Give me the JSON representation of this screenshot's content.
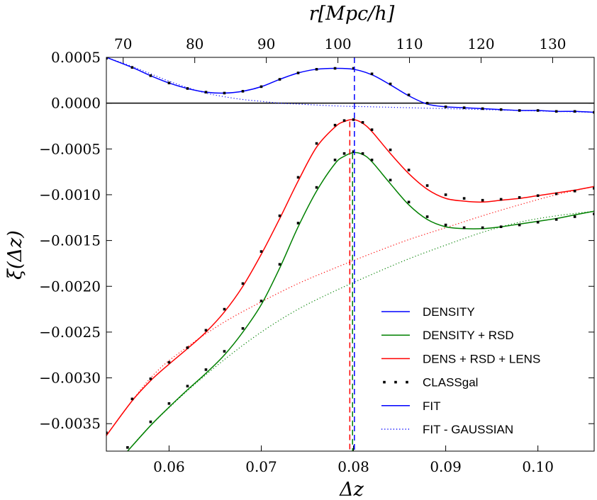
{
  "chart_data": {
    "type": "line",
    "title": "",
    "xlabel": "Δz",
    "ylabel": "ξ(Δz)",
    "top_xlabel": "r[Mpc/h]",
    "xlim": [
      0.0532,
      0.1061
    ],
    "ylim": [
      -0.0038,
      0.0005
    ],
    "top_xlim": [
      67.65,
      135.8
    ],
    "x_ticks": [
      0.06,
      0.07,
      0.08,
      0.09,
      0.1
    ],
    "x_tick_labels": [
      "0.06",
      "0.07",
      "0.08",
      "0.09",
      "0.10"
    ],
    "top_x_ticks": [
      70,
      80,
      90,
      100,
      110,
      120,
      130
    ],
    "top_x_tick_labels": [
      "70",
      "80",
      "90",
      "100",
      "110",
      "120",
      "130"
    ],
    "y_ticks": [
      0.0005,
      0.0,
      -0.0005,
      -0.001,
      -0.0015,
      -0.002,
      -0.0025,
      -0.003,
      -0.0035
    ],
    "y_tick_labels": [
      "0.0005",
      "0.0000",
      "−0.0005",
      "−0.0010",
      "−0.0015",
      "−0.0020",
      "−0.0025",
      "−0.0030",
      "−0.0035"
    ],
    "grid": false,
    "legend_position": "lower-right",
    "hline": {
      "y": 0.0,
      "color": "#000000"
    },
    "vlines": [
      {
        "x": 0.0796,
        "top_y": -0.0002,
        "color": "#ff0000"
      },
      {
        "x": 0.0799,
        "top_y": -0.00055,
        "color": "#008000"
      },
      {
        "x": 0.0801,
        "top_y": 0.0005,
        "color": "#0000ff"
      }
    ],
    "series": [
      {
        "name": "DENS + RSD + LENS fit",
        "color": "#ff0000",
        "style": "solid",
        "x": [
          0.0532,
          0.056,
          0.058,
          0.06,
          0.062,
          0.064,
          0.066,
          0.068,
          0.07,
          0.072,
          0.074,
          0.076,
          0.078,
          0.079,
          0.08,
          0.081,
          0.082,
          0.084,
          0.086,
          0.088,
          0.09,
          0.092,
          0.094,
          0.096,
          0.098,
          0.1,
          0.102,
          0.104,
          0.1061
        ],
        "y": [
          -0.00363,
          -0.00325,
          -0.00303,
          -0.00285,
          -0.00268,
          -0.0025,
          -0.00228,
          -0.002,
          -0.00165,
          -0.00126,
          -0.00085,
          -0.00048,
          -0.00026,
          -0.0002,
          -0.00018,
          -0.00022,
          -0.00031,
          -0.00055,
          -0.00077,
          -0.00094,
          -0.00104,
          -0.00107,
          -0.00108,
          -0.00106,
          -0.00104,
          -0.00101,
          -0.00098,
          -0.00095,
          -0.00091
        ]
      },
      {
        "name": "DENS + RSD + LENS gaussian-subtracted",
        "color": "#ff0000",
        "style": "dotted",
        "x": [
          0.0532,
          0.058,
          0.062,
          0.066,
          0.07,
          0.074,
          0.078,
          0.082,
          0.086,
          0.09,
          0.094,
          0.098,
          0.102,
          0.1061
        ],
        "y": [
          -0.00363,
          -0.003,
          -0.00266,
          -0.00239,
          -0.00217,
          -0.00197,
          -0.0018,
          -0.00164,
          -0.00149,
          -0.00136,
          -0.00123,
          -0.00111,
          -0.001,
          -0.00091
        ]
      },
      {
        "name": "DENSITY + RSD fit",
        "color": "#008000",
        "style": "solid",
        "x": [
          0.0555,
          0.058,
          0.06,
          0.062,
          0.064,
          0.066,
          0.068,
          0.07,
          0.072,
          0.074,
          0.076,
          0.078,
          0.079,
          0.08,
          0.081,
          0.082,
          0.084,
          0.086,
          0.088,
          0.09,
          0.092,
          0.094,
          0.096,
          0.098,
          0.1,
          0.102,
          0.104,
          0.1061
        ],
        "y": [
          -0.0038,
          -0.00352,
          -0.00332,
          -0.00313,
          -0.00295,
          -0.00275,
          -0.0025,
          -0.0022,
          -0.0018,
          -0.00135,
          -0.00096,
          -0.00066,
          -0.00058,
          -0.00054,
          -0.00056,
          -0.00064,
          -0.00088,
          -0.00111,
          -0.00127,
          -0.00135,
          -0.00137,
          -0.00137,
          -0.00135,
          -0.00132,
          -0.00129,
          -0.00126,
          -0.00122,
          -0.00118
        ]
      },
      {
        "name": "DENSITY + RSD gaussian-subtracted",
        "color": "#008000",
        "style": "dotted",
        "x": [
          0.0555,
          0.058,
          0.062,
          0.066,
          0.07,
          0.074,
          0.078,
          0.082,
          0.086,
          0.09,
          0.094,
          0.098,
          0.102,
          0.1061
        ],
        "y": [
          -0.0038,
          -0.00352,
          -0.00314,
          -0.0028,
          -0.0025,
          -0.00225,
          -0.00205,
          -0.00187,
          -0.0017,
          -0.00155,
          -0.00141,
          -0.0013,
          -0.00123,
          -0.00118
        ]
      },
      {
        "name": "DENSITY fit",
        "color": "#0000ff",
        "style": "solid",
        "x": [
          0.0532,
          0.056,
          0.058,
          0.06,
          0.062,
          0.064,
          0.066,
          0.068,
          0.07,
          0.072,
          0.074,
          0.076,
          0.078,
          0.08,
          0.082,
          0.084,
          0.086,
          0.088,
          0.09,
          0.092,
          0.094,
          0.096,
          0.098,
          0.1,
          0.102,
          0.104,
          0.1061
        ],
        "y": [
          0.0005,
          0.00039,
          0.0003,
          0.00022,
          0.00016,
          0.00012,
          0.00011,
          0.00013,
          0.00018,
          0.00026,
          0.00033,
          0.00037,
          0.00038,
          0.00037,
          0.00031,
          0.0002,
          8e-05,
          -1e-05,
          -4e-05,
          -5e-05,
          -6e-05,
          -7e-05,
          -8e-05,
          -8e-05,
          -9e-05,
          -9e-05,
          -0.0001
        ]
      },
      {
        "name": "DENSITY gaussian-subtracted",
        "color": "#0000ff",
        "style": "dotted",
        "x": [
          0.0532,
          0.056,
          0.058,
          0.06,
          0.062,
          0.064,
          0.066,
          0.068,
          0.07,
          0.072,
          0.074,
          0.078,
          0.082,
          0.086,
          0.09,
          0.094,
          0.098,
          0.102,
          0.1061
        ],
        "y": [
          0.0005,
          0.0004,
          0.00032,
          0.00024,
          0.00017,
          0.00011,
          7e-05,
          4e-05,
          2e-05,
          0.0,
          -1e-05,
          -3e-05,
          -4e-05,
          -5e-05,
          -6e-05,
          -7e-05,
          -8e-05,
          -9e-05,
          -0.0001
        ]
      }
    ],
    "scatter": [
      {
        "name": "CLASSgal (DENS + RSD + LENS)",
        "color": "#000000",
        "x": [
          0.0532,
          0.056,
          0.058,
          0.06,
          0.062,
          0.064,
          0.066,
          0.068,
          0.07,
          0.072,
          0.074,
          0.076,
          0.078,
          0.079,
          0.08,
          0.081,
          0.082,
          0.084,
          0.086,
          0.088,
          0.09,
          0.092,
          0.094,
          0.096,
          0.098,
          0.1,
          0.102,
          0.104,
          0.1061
        ],
        "y": [
          -0.0036,
          -0.00323,
          -0.00301,
          -0.00283,
          -0.00267,
          -0.00248,
          -0.00225,
          -0.00197,
          -0.00162,
          -0.00123,
          -0.00081,
          -0.00044,
          -0.00024,
          -0.00019,
          -0.00018,
          -0.00021,
          -0.00029,
          -0.00051,
          -0.00073,
          -0.0009,
          -0.001,
          -0.00104,
          -0.00106,
          -0.00105,
          -0.00103,
          -0.00101,
          -0.00099,
          -0.00096,
          -0.00093
        ]
      },
      {
        "name": "CLASSgal (DENSITY + RSD)",
        "color": "#000000",
        "x": [
          0.0555,
          0.058,
          0.06,
          0.062,
          0.064,
          0.066,
          0.068,
          0.07,
          0.072,
          0.074,
          0.076,
          0.078,
          0.079,
          0.08,
          0.081,
          0.082,
          0.084,
          0.086,
          0.088,
          0.09,
          0.092,
          0.094,
          0.096,
          0.098,
          0.1,
          0.102,
          0.104,
          0.1061
        ],
        "y": [
          -0.00376,
          -0.00348,
          -0.00328,
          -0.00309,
          -0.00291,
          -0.00271,
          -0.00246,
          -0.00216,
          -0.00176,
          -0.00131,
          -0.00092,
          -0.00062,
          -0.00055,
          -0.00053,
          -0.00055,
          -0.00062,
          -0.00084,
          -0.00108,
          -0.00124,
          -0.00133,
          -0.00136,
          -0.00136,
          -0.00135,
          -0.00133,
          -0.0013,
          -0.00127,
          -0.00124,
          -0.00121
        ]
      },
      {
        "name": "CLASSgal (DENSITY)",
        "color": "#000000",
        "x": [
          0.0532,
          0.056,
          0.058,
          0.06,
          0.062,
          0.064,
          0.066,
          0.068,
          0.07,
          0.072,
          0.074,
          0.076,
          0.078,
          0.08,
          0.082,
          0.084,
          0.086,
          0.088,
          0.09,
          0.092,
          0.094,
          0.096,
          0.098,
          0.1,
          0.102,
          0.104,
          0.1061
        ],
        "y": [
          0.00049,
          0.00039,
          0.0003,
          0.00022,
          0.00016,
          0.00012,
          0.00011,
          0.00013,
          0.00018,
          0.00026,
          0.00033,
          0.00037,
          0.00038,
          0.00038,
          0.00032,
          0.00021,
          9e-05,
          0.0,
          -4e-05,
          -5e-05,
          -6e-05,
          -7e-05,
          -8e-05,
          -8e-05,
          -9e-05,
          -9e-05,
          -0.0001
        ]
      }
    ],
    "legend": [
      {
        "label": "DENSITY",
        "color": "#0000ff",
        "style": "solid"
      },
      {
        "label": "DENSITY + RSD",
        "color": "#008000",
        "style": "solid"
      },
      {
        "label": "DENS + RSD + LENS",
        "color": "#ff0000",
        "style": "solid"
      },
      {
        "label": "CLASSgal",
        "color": "#000000",
        "style": "dots"
      },
      {
        "label": "FIT",
        "color": "#0000ff",
        "style": "solid"
      },
      {
        "label": "FIT - GAUSSIAN",
        "color": "#0000ff",
        "style": "dotted"
      }
    ]
  }
}
